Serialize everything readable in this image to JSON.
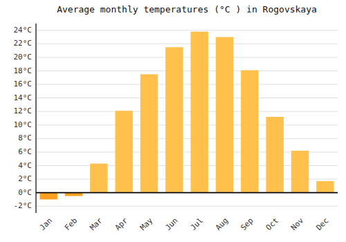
{
  "chart_data": {
    "type": "bar",
    "title": "Average monthly temperatures (°C ) in Rogovskaya",
    "categories": [
      "Jan",
      "Feb",
      "Mar",
      "Apr",
      "May",
      "Jun",
      "Jul",
      "Aug",
      "Sep",
      "Oct",
      "Nov",
      "Dec"
    ],
    "values": [
      -1.0,
      -0.5,
      4.3,
      12.1,
      17.5,
      21.5,
      23.8,
      23.0,
      18.1,
      11.2,
      6.2,
      1.7
    ],
    "colors": [
      "#FFA020",
      "#FFA020",
      "#FFC04C",
      "#FFC04C",
      "#FFC04C",
      "#FFC04C",
      "#FFC04C",
      "#FFC04C",
      "#FFC04C",
      "#FFC04C",
      "#FFC04C",
      "#FFC04C"
    ],
    "ylim": [
      -3,
      25
    ],
    "yticks": [
      {
        "value": -2,
        "label": "-2°C"
      },
      {
        "value": 0,
        "label": "0°C"
      },
      {
        "value": 2,
        "label": "2°C"
      },
      {
        "value": 4,
        "label": "4°C"
      },
      {
        "value": 6,
        "label": "6°C"
      },
      {
        "value": 8,
        "label": "8°C"
      },
      {
        "value": 10,
        "label": "10°C"
      },
      {
        "value": 12,
        "label": "12°C"
      },
      {
        "value": 14,
        "label": "14°C"
      },
      {
        "value": 16,
        "label": "16°C"
      },
      {
        "value": 18,
        "label": "18°C"
      },
      {
        "value": 20,
        "label": "20°C"
      },
      {
        "value": 22,
        "label": "22°C"
      },
      {
        "value": 24,
        "label": "24°C"
      }
    ],
    "grid": true
  }
}
